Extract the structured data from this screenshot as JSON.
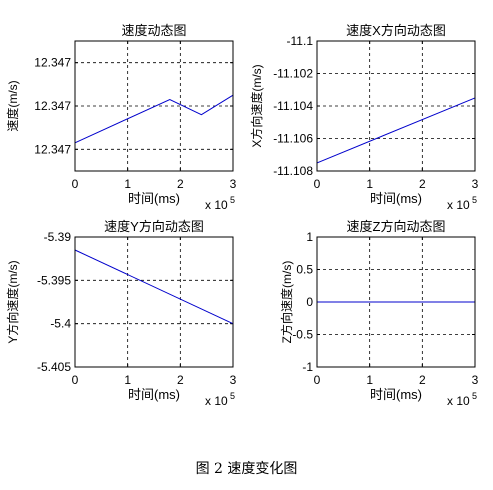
{
  "caption": "图 2  速度变化图",
  "chart_data": [
    {
      "type": "line",
      "title": "速度动态图",
      "xlabel": "时间(ms)",
      "ylabel": "速度(m/s)",
      "x_exponent": "x 10",
      "x_exponent_power": "5",
      "xlim": [
        0,
        3
      ],
      "ylim": [
        0,
        3
      ],
      "xticks": [
        0,
        1,
        2,
        3
      ],
      "xtick_labels": [
        "0",
        "1",
        "2",
        "3"
      ],
      "yticks": [
        0.5,
        1.5,
        2.5
      ],
      "ytick_labels": [
        "12.347",
        "12.347",
        "12.347"
      ],
      "grid": true,
      "series": [
        {
          "color": "#0000cc",
          "x": [
            0,
            1.8,
            2.4,
            3.0
          ],
          "y": [
            0.65,
            1.65,
            1.3,
            1.75
          ]
        }
      ]
    },
    {
      "type": "line",
      "title": "速度X方向动态图",
      "xlabel": "时间(ms)",
      "ylabel": "X方向速度(m/s)",
      "x_exponent": "x 10",
      "x_exponent_power": "5",
      "xlim": [
        0,
        3
      ],
      "ylim": [
        -11.108,
        -11.1
      ],
      "xticks": [
        0,
        1,
        2,
        3
      ],
      "xtick_labels": [
        "0",
        "1",
        "2",
        "3"
      ],
      "yticks": [
        -11.108,
        -11.106,
        -11.104,
        -11.102,
        -11.1
      ],
      "ytick_labels": [
        "-11.108",
        "-11.106",
        "-11.104",
        "-11.102",
        "-11.1"
      ],
      "grid": true,
      "series": [
        {
          "color": "#0000cc",
          "x": [
            0,
            3
          ],
          "y": [
            -11.1075,
            -11.1035
          ]
        }
      ]
    },
    {
      "type": "line",
      "title": "速度Y方向动态图",
      "xlabel": "时间(ms)",
      "ylabel": "Y方向速度(m/s)",
      "x_exponent": "x 10",
      "x_exponent_power": "5",
      "xlim": [
        0,
        3
      ],
      "ylim": [
        -5.405,
        -5.39
      ],
      "xticks": [
        0,
        1,
        2,
        3
      ],
      "xtick_labels": [
        "0",
        "1",
        "2",
        "3"
      ],
      "yticks": [
        -5.405,
        -5.4,
        -5.395,
        -5.39
      ],
      "ytick_labels": [
        "-5.405",
        "-5.4",
        "-5.395",
        "-5.39"
      ],
      "grid": true,
      "series": [
        {
          "color": "#0000cc",
          "x": [
            0,
            3
          ],
          "y": [
            -5.3915,
            -5.4
          ]
        }
      ]
    },
    {
      "type": "line",
      "title": "速度Z方向动态图",
      "xlabel": "时间(ms)",
      "ylabel": "Z方向速度(m/s)",
      "x_exponent": "x 10",
      "x_exponent_power": "5",
      "xlim": [
        0,
        3
      ],
      "ylim": [
        -1,
        1
      ],
      "xticks": [
        0,
        1,
        2,
        3
      ],
      "xtick_labels": [
        "0",
        "1",
        "2",
        "3"
      ],
      "yticks": [
        -1,
        -0.5,
        0,
        0.5,
        1
      ],
      "ytick_labels": [
        "-1",
        "-0.5",
        "0",
        "0.5",
        "1"
      ],
      "grid": true,
      "series": [
        {
          "color": "#0000cc",
          "x": [
            0,
            3
          ],
          "y": [
            0,
            0
          ]
        }
      ]
    }
  ]
}
